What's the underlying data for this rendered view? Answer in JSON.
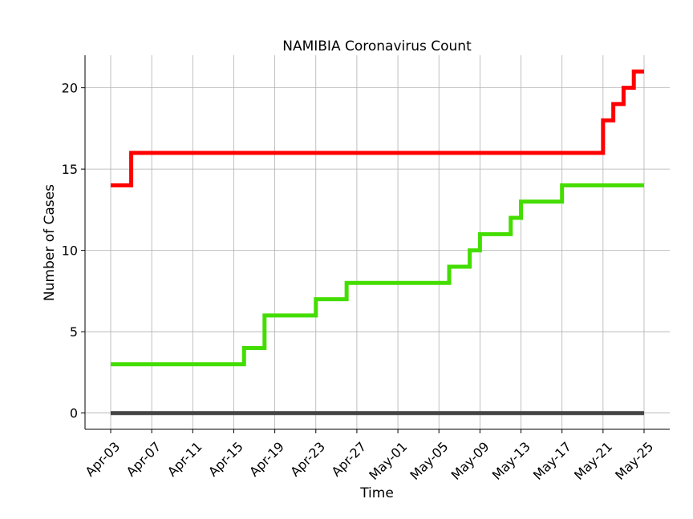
{
  "chart_data": {
    "type": "line",
    "title": "NAMIBIA Coronavirus Count",
    "xlabel": "Time",
    "ylabel": "Number of Cases",
    "x_tick_labels": [
      "Apr-03",
      "Apr-07",
      "Apr-11",
      "Apr-15",
      "Apr-19",
      "Apr-23",
      "Apr-27",
      "May-01",
      "May-05",
      "May-09",
      "May-13",
      "May-17",
      "May-21",
      "May-25"
    ],
    "y_ticks": [
      0,
      5,
      10,
      15,
      20
    ],
    "xlim": [
      "2020-04-03",
      "2020-05-25"
    ],
    "ylim": [
      -1,
      22
    ],
    "grid": true,
    "step": "post",
    "series": [
      {
        "color": "#ff0000",
        "points": [
          [
            "2020-04-03",
            14
          ],
          [
            "2020-04-05",
            16
          ],
          [
            "2020-05-21",
            18
          ],
          [
            "2020-05-22",
            19
          ],
          [
            "2020-05-23",
            20
          ],
          [
            "2020-05-24",
            21
          ],
          [
            "2020-05-25",
            21
          ]
        ]
      },
      {
        "color": "#44dd00",
        "points": [
          [
            "2020-04-03",
            3
          ],
          [
            "2020-04-16",
            4
          ],
          [
            "2020-04-18",
            6
          ],
          [
            "2020-04-23",
            7
          ],
          [
            "2020-04-26",
            8
          ],
          [
            "2020-05-06",
            9
          ],
          [
            "2020-05-08",
            10
          ],
          [
            "2020-05-09",
            11
          ],
          [
            "2020-05-12",
            12
          ],
          [
            "2020-05-13",
            13
          ],
          [
            "2020-05-17",
            14
          ],
          [
            "2020-05-25",
            14
          ]
        ]
      },
      {
        "color": "#444444",
        "points": [
          [
            "2020-04-03",
            0
          ],
          [
            "2020-05-25",
            0
          ]
        ]
      }
    ]
  }
}
